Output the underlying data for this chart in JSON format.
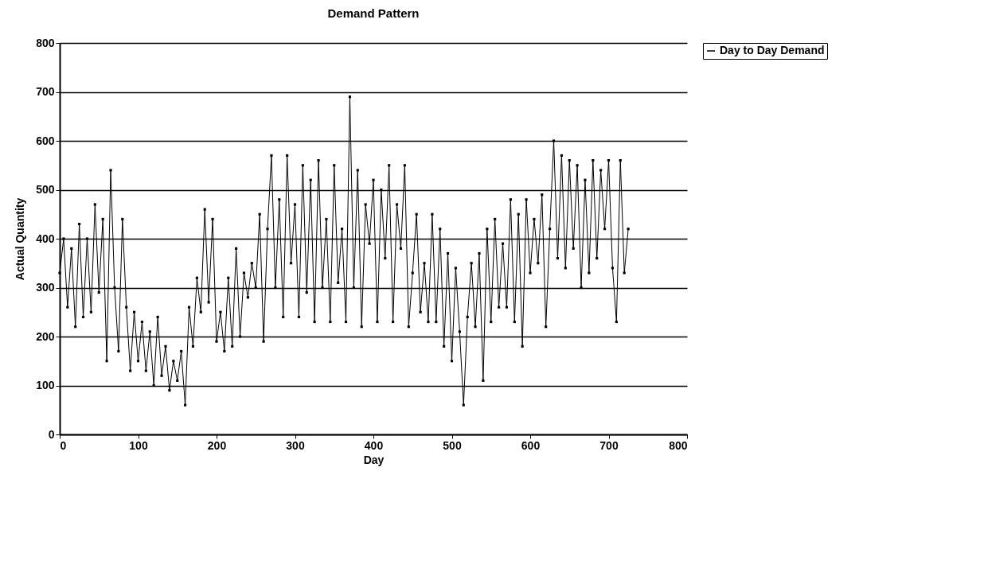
{
  "chart_data": {
    "type": "line",
    "title": "Demand Pattern",
    "xlabel": "Day",
    "ylabel": "Actual Quantity",
    "x": [
      0,
      5,
      10,
      15,
      20,
      25,
      30,
      35,
      40,
      45,
      50,
      55,
      60,
      65,
      70,
      75,
      80,
      85,
      90,
      95,
      100,
      105,
      110,
      115,
      120,
      125,
      130,
      135,
      140,
      145,
      150,
      155,
      160,
      165,
      170,
      175,
      180,
      185,
      190,
      195,
      200,
      205,
      210,
      215,
      220,
      225,
      230,
      235,
      240,
      245,
      250,
      255,
      260,
      265,
      270,
      275,
      280,
      285,
      290,
      295,
      300,
      305,
      310,
      315,
      320,
      325,
      330,
      335,
      340,
      345,
      350,
      355,
      360,
      365,
      370,
      375,
      380,
      385,
      390,
      395,
      400,
      405,
      410,
      415,
      420,
      425,
      430,
      435,
      440,
      445,
      450,
      455,
      460,
      465,
      470,
      475,
      480,
      485,
      490,
      495,
      500,
      505,
      510,
      515,
      520,
      525,
      530,
      535,
      540,
      545,
      550,
      555,
      560,
      565,
      570,
      575,
      580,
      585,
      590,
      595,
      600,
      605,
      610,
      615,
      620,
      625,
      630,
      635,
      640,
      645,
      650,
      655,
      660,
      665,
      670,
      675,
      680,
      685,
      690,
      695,
      700,
      705,
      710,
      715,
      720,
      725
    ],
    "series": [
      {
        "name": "Day to Day Demand",
        "color": "#000000",
        "values": [
          330,
          400,
          260,
          380,
          220,
          430,
          240,
          400,
          250,
          470,
          290,
          440,
          150,
          540,
          300,
          170,
          440,
          260,
          130,
          250,
          150,
          230,
          130,
          210,
          100,
          240,
          120,
          180,
          90,
          150,
          110,
          170,
          60,
          260,
          180,
          320,
          250,
          460,
          270,
          440,
          190,
          250,
          170,
          320,
          180,
          380,
          200,
          330,
          280,
          350,
          300,
          450,
          190,
          420,
          570,
          300,
          480,
          240,
          570,
          350,
          470,
          240,
          550,
          290,
          520,
          230,
          560,
          300,
          440,
          230,
          550,
          310,
          420,
          230,
          690,
          300,
          540,
          220,
          470,
          390,
          520,
          230,
          500,
          360,
          550,
          230,
          470,
          380,
          550,
          220,
          330,
          450,
          250,
          350,
          230,
          450,
          230,
          420,
          180,
          370,
          150,
          340,
          210,
          60,
          240,
          350,
          220,
          370,
          110,
          420,
          230,
          440,
          260,
          390,
          260,
          480,
          230,
          450,
          180,
          480,
          330,
          440,
          350,
          490,
          220,
          420,
          600,
          360,
          570,
          340,
          560,
          380,
          550,
          300,
          520,
          330,
          560,
          360,
          540,
          420,
          560,
          340,
          230,
          560,
          330,
          420
        ]
      }
    ],
    "xlim": [
      0,
      800
    ],
    "xticks": [
      0,
      100,
      200,
      300,
      400,
      500,
      600,
      700,
      800
    ],
    "ylim": [
      0,
      800
    ],
    "yticks": [
      0,
      100,
      200,
      300,
      400,
      500,
      600,
      700,
      800
    ],
    "grid": "y",
    "legend": "right",
    "marker": "square",
    "line_style": "solid"
  }
}
